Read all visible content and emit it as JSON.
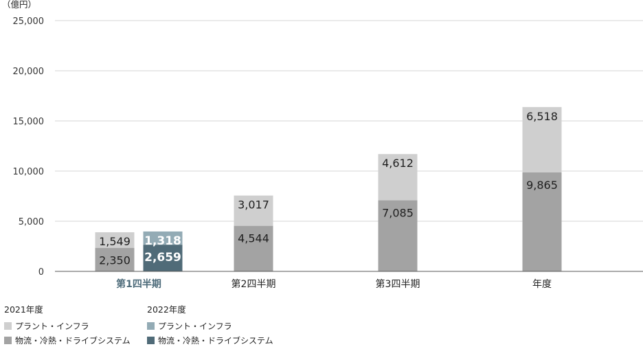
{
  "chart_data": {
    "type": "bar",
    "stacked": true,
    "unit_label": "（億円）",
    "categories": [
      "第1四半期",
      "第2四半期",
      "第3四半期",
      "年度"
    ],
    "highlight_category": "第1四半期",
    "ylim": [
      0,
      25000
    ],
    "yticks": [
      0,
      5000,
      10000,
      15000,
      20000,
      25000
    ],
    "ytick_labels": [
      "0",
      "5,000",
      "10,000",
      "15,000",
      "20,000",
      "25,000"
    ],
    "grid": true,
    "groups": [
      {
        "name": "2021年度",
        "segments": [
          {
            "name": "物流・冷熱・ドライブシステム",
            "color": "#a3a3a3",
            "values": [
              2350,
              4544,
              7085,
              9865
            ],
            "labels": [
              "2,350",
              "4,544",
              "7,085",
              "9,865"
            ]
          },
          {
            "name": "プラント・インフラ",
            "color": "#cfcfcf",
            "values": [
              1549,
              3017,
              4612,
              6518
            ],
            "labels": [
              "1,549",
              "3,017",
              "4,612",
              "6,518"
            ]
          }
        ]
      },
      {
        "name": "2022年度",
        "segments": [
          {
            "name": "物流・冷熱・ドライブシステム",
            "color": "#506b78",
            "values": [
              2659,
              null,
              null,
              null
            ],
            "labels": [
              "2,659",
              "",
              "",
              ""
            ]
          },
          {
            "name": "プラント・インフラ",
            "color": "#93abb5",
            "values": [
              1318,
              null,
              null,
              null
            ],
            "labels": [
              "1,318",
              "",
              "",
              ""
            ]
          }
        ]
      }
    ],
    "legend_position": "bottom-left"
  },
  "legend": [
    {
      "title": "2021年度",
      "items": [
        {
          "label": "プラント・インフラ",
          "color": "#cfcfcf"
        },
        {
          "label": "物流・冷熱・ドライブシステム",
          "color": "#a3a3a3"
        }
      ]
    },
    {
      "title": "2022年度",
      "items": [
        {
          "label": "プラント・インフラ",
          "color": "#93abb5"
        },
        {
          "label": "物流・冷熱・ドライブシステム",
          "color": "#506b78"
        }
      ]
    }
  ],
  "colors": {
    "grid": "#d6d6d6",
    "axis": "#555555",
    "highlight_text": "#4d6b7a",
    "text": "#222222"
  }
}
